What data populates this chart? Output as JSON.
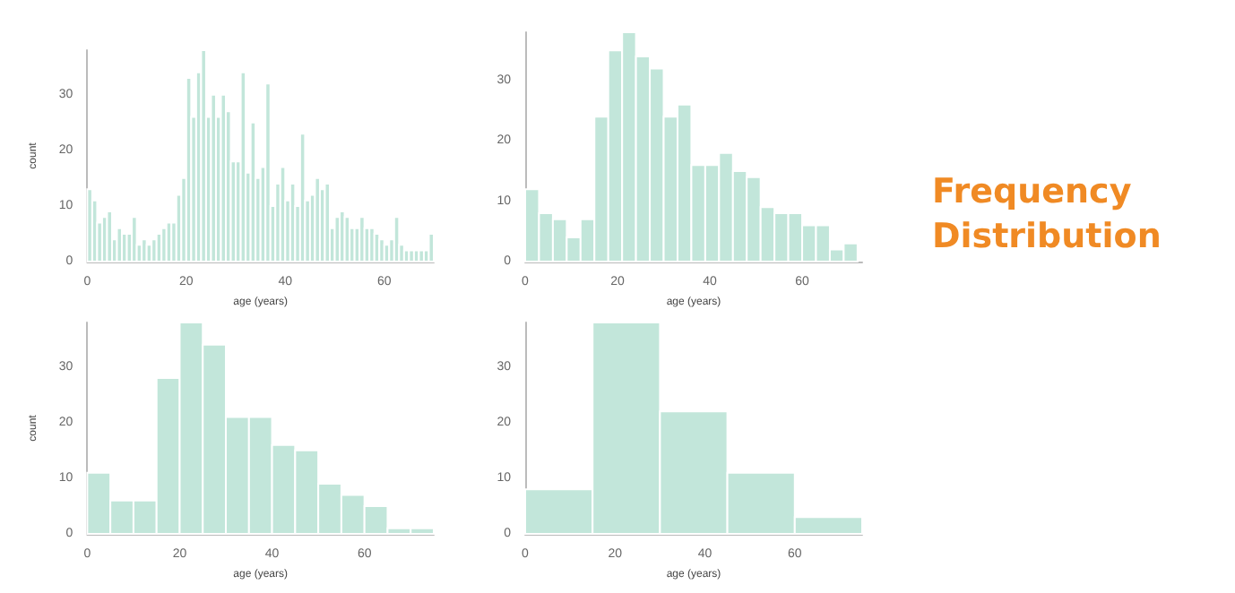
{
  "chart_data": [
    {
      "type": "histogram",
      "ylabel": "count",
      "xlabel": "age (years)",
      "color": "#c2e6da",
      "grid": false,
      "bins": [
        0,
        1,
        2,
        3,
        4,
        5,
        6,
        7,
        8,
        9,
        10,
        11,
        12,
        13,
        14,
        15,
        16,
        17,
        18,
        19,
        20,
        21,
        22,
        23,
        24,
        25,
        26,
        27,
        28,
        29,
        30,
        31,
        32,
        33,
        34,
        35,
        36,
        37,
        38,
        39,
        40,
        41,
        42,
        43,
        44,
        45,
        46,
        47,
        48,
        49,
        50,
        51,
        52,
        53,
        54,
        55,
        56,
        57,
        58,
        59,
        60,
        61,
        62,
        63,
        64,
        65,
        66,
        67,
        68,
        69,
        70
      ],
      "values": [
        13,
        11,
        7,
        8,
        9,
        4,
        6,
        5,
        5,
        8,
        3,
        4,
        3,
        4,
        5,
        6,
        7,
        7,
        12,
        15,
        33,
        26,
        34,
        38,
        26,
        30,
        26,
        30,
        27,
        18,
        18,
        34,
        16,
        25,
        15,
        17,
        32,
        10,
        14,
        17,
        11,
        14,
        10,
        23,
        11,
        12,
        15,
        13,
        14,
        6,
        8,
        9,
        8,
        6,
        6,
        8,
        6,
        6,
        5,
        4,
        3,
        4,
        8,
        3,
        2,
        2,
        2,
        2,
        2,
        5
      ],
      "xlim": [
        0,
        70
      ],
      "xticks": [
        0,
        20,
        40,
        60
      ],
      "ylim": [
        0,
        38
      ],
      "yticks": [
        0,
        10,
        20,
        30
      ]
    },
    {
      "type": "histogram",
      "xlabel": "age (years)",
      "color": "#c2e6da",
      "grid": false,
      "bins": [
        0,
        3,
        6,
        9,
        12,
        15,
        18,
        21,
        24,
        27,
        30,
        33,
        36,
        39,
        42,
        45,
        48,
        51,
        54,
        57,
        60,
        63,
        66,
        69,
        72
      ],
      "values": [
        12,
        8,
        7,
        4,
        7,
        24,
        35,
        38,
        34,
        32,
        24,
        26,
        16,
        16,
        18,
        15,
        14,
        9,
        8,
        8,
        6,
        6,
        2,
        3
      ],
      "xlim": [
        0,
        73
      ],
      "xticks": [
        0,
        20,
        40,
        60
      ],
      "ylim": [
        0,
        38
      ],
      "yticks": [
        0,
        10,
        20,
        30
      ]
    },
    {
      "type": "histogram",
      "ylabel": "count",
      "xlabel": "age (years)",
      "color": "#c2e6da",
      "grid": false,
      "bins": [
        0,
        5,
        10,
        15,
        20,
        25,
        30,
        35,
        40,
        45,
        50,
        55,
        60,
        65,
        70,
        75
      ],
      "values": [
        11,
        6,
        6,
        28,
        38,
        34,
        21,
        21,
        16,
        15,
        9,
        7,
        5,
        1,
        1
      ],
      "xlim": [
        0,
        75
      ],
      "xticks": [
        0,
        20,
        40,
        60
      ],
      "ylim": [
        0,
        38
      ],
      "yticks": [
        0,
        10,
        20,
        30
      ]
    },
    {
      "type": "histogram",
      "xlabel": "age (years)",
      "color": "#c2e6da",
      "grid": false,
      "bins": [
        0,
        15,
        30,
        45,
        60,
        75
      ],
      "values": [
        8,
        38,
        22,
        11,
        3
      ],
      "xlim": [
        0,
        75
      ],
      "xticks": [
        0,
        20,
        40,
        60
      ],
      "ylim": [
        0,
        38
      ],
      "yticks": [
        0,
        10,
        20,
        30
      ]
    },
    {
      "type": "other",
      "title": "Frequency Distribution",
      "color": "#f08a24"
    }
  ]
}
